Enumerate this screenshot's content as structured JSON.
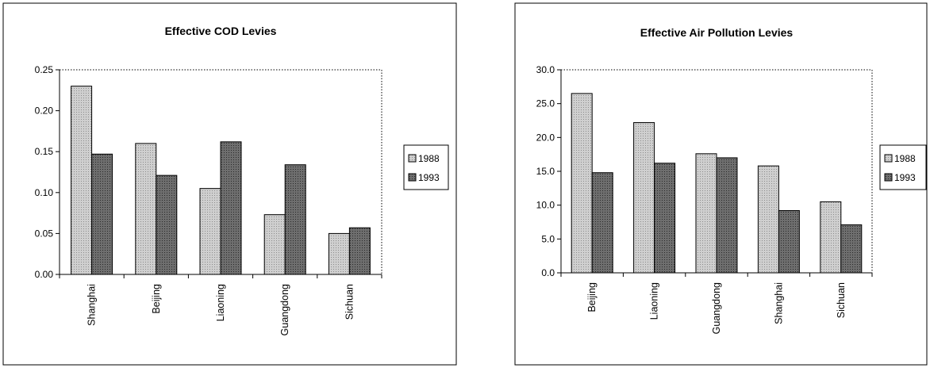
{
  "charts": [
    {
      "title": "Effective COD Levies",
      "chart_data": {
        "type": "bar",
        "categories": [
          "Shanghai",
          "Beijing",
          "Liaoning",
          "Guangdong",
          "Sichuan"
        ],
        "series": [
          {
            "name": "1988",
            "values": [
              0.23,
              0.16,
              0.105,
              0.073,
              0.05
            ]
          },
          {
            "name": "1993",
            "values": [
              0.147,
              0.121,
              0.162,
              0.134,
              0.057
            ]
          }
        ],
        "yticks": [
          "0.00",
          "0.05",
          "0.10",
          "0.15",
          "0.20",
          "0.25"
        ],
        "ylim": [
          0,
          0.25
        ],
        "legend": "right",
        "grid": false
      }
    },
    {
      "title": "Effective Air Pollution Levies",
      "chart_data": {
        "type": "bar",
        "categories": [
          "Beijing",
          "Liaoning",
          "Guangdong",
          "Shanghai",
          "Sichuan"
        ],
        "series": [
          {
            "name": "1988",
            "values": [
              26.5,
              22.2,
              17.6,
              15.8,
              10.5
            ]
          },
          {
            "name": "1993",
            "values": [
              14.8,
              16.2,
              17.0,
              9.2,
              7.1
            ]
          }
        ],
        "yticks": [
          "0.0",
          "5.0",
          "10.0",
          "15.0",
          "20.0",
          "25.0",
          "30.0"
        ],
        "ylim": [
          0,
          30
        ],
        "legend": "right",
        "grid": false
      }
    }
  ],
  "colors": {
    "series_1988": "#cfcfcf",
    "series_1993": "#6e6e6e",
    "frame": "#000000"
  }
}
